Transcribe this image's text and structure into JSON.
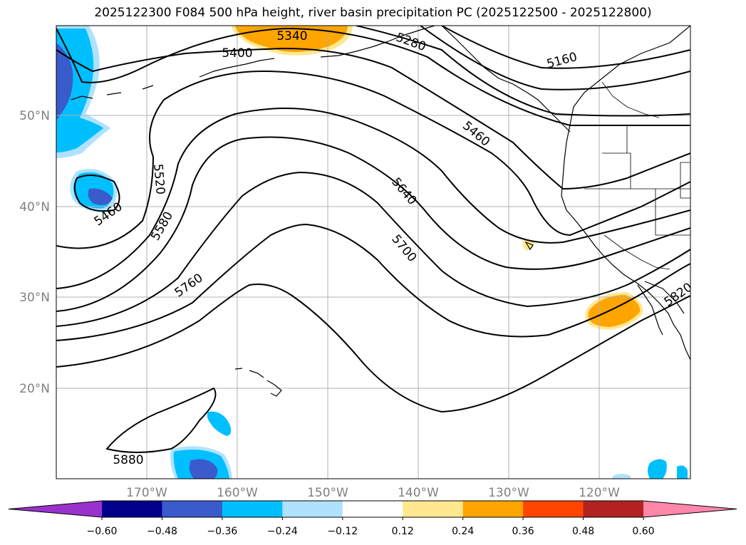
{
  "title": "2025122300 F084 500 hPa height, river basin precipitation PC (2025122500 - 2025122800)",
  "lat_labels": [
    "50°N",
    "40°N",
    "30°N",
    "20°N"
  ],
  "lon_labels": [
    "170°W",
    "160°W",
    "150°W",
    "140°W",
    "130°W",
    "120°W"
  ],
  "contour_labels": [
    "5340",
    "5400",
    "5280",
    "5160",
    "5460",
    "5460",
    "5520",
    "5580",
    "5640",
    "5700",
    "5760",
    "5820",
    "5880"
  ],
  "colorbar": {
    "ticks": [
      "−0.60",
      "−0.48",
      "−0.36",
      "−0.24",
      "−0.12",
      "0.12",
      "0.24",
      "0.36",
      "0.48",
      "0.60"
    ],
    "colors": [
      "#9932cc",
      "#00008b",
      "#3a5bcc",
      "#00bfff",
      "#b0e2ff",
      "#ffffff",
      "#ffe88f",
      "#ffa500",
      "#ff4500",
      "#b22222",
      "#ff88aa"
    ]
  },
  "colors": {
    "positive_moderate": "#ffa500",
    "positive_light": "#ffe88f",
    "negative_strong": "#3a5bcc",
    "negative_moderate": "#00bfff",
    "negative_light": "#b0e2ff"
  }
}
